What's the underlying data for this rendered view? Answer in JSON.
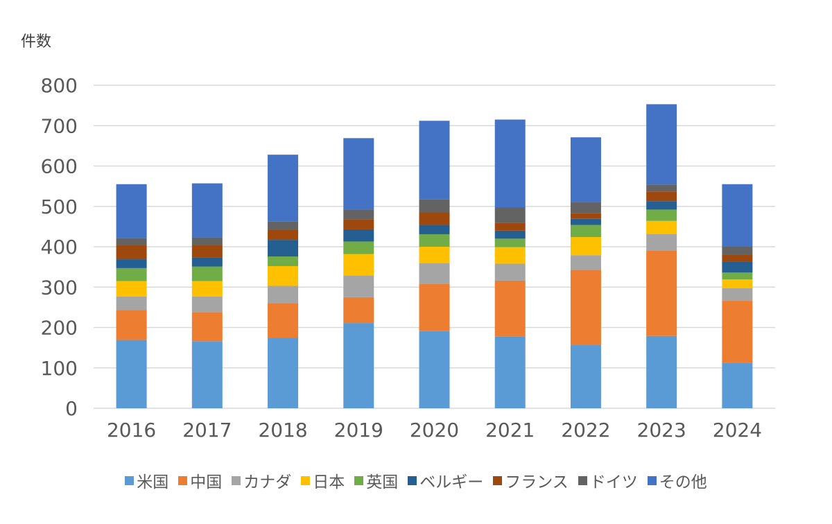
{
  "chart_data": {
    "type": "bar",
    "stacked": true,
    "ylabel": "件数",
    "xlabel": "",
    "ylim": [
      0,
      800
    ],
    "yticks": [
      0,
      100,
      200,
      300,
      400,
      500,
      600,
      700,
      800
    ],
    "grid": true,
    "legend_position": "bottom",
    "categories": [
      "2016",
      "2017",
      "2018",
      "2019",
      "2020",
      "2021",
      "2022",
      "2023",
      "2024"
    ],
    "series": [
      {
        "name": "米国",
        "color": "#5B9BD5",
        "values": [
          169,
          166,
          175,
          211,
          191,
          177,
          157,
          179,
          113
        ]
      },
      {
        "name": "中国",
        "color": "#ED7D31",
        "values": [
          74,
          72,
          85,
          64,
          117,
          139,
          186,
          212,
          153
        ]
      },
      {
        "name": "カナダ",
        "color": "#A5A5A5",
        "values": [
          34,
          39,
          43,
          54,
          52,
          42,
          36,
          41,
          31
        ]
      },
      {
        "name": "日本",
        "color": "#FFC000",
        "values": [
          38,
          38,
          49,
          53,
          40,
          41,
          45,
          32,
          22
        ]
      },
      {
        "name": "英国",
        "color": "#70AD47",
        "values": [
          32,
          36,
          24,
          31,
          31,
          21,
          30,
          28,
          17
        ]
      },
      {
        "name": "ベルギー",
        "color": "#255E91",
        "values": [
          22,
          23,
          41,
          30,
          23,
          20,
          15,
          21,
          27
        ]
      },
      {
        "name": "フランス",
        "color": "#9E480E",
        "values": [
          36,
          31,
          25,
          25,
          31,
          19,
          14,
          24,
          18
        ]
      },
      {
        "name": "ドイツ",
        "color": "#636363",
        "values": [
          17,
          18,
          21,
          24,
          33,
          38,
          27,
          17,
          19
        ]
      },
      {
        "name": "その他",
        "color": "#4472C4",
        "values": [
          133,
          134,
          165,
          177,
          194,
          218,
          161,
          199,
          155
        ]
      }
    ]
  }
}
